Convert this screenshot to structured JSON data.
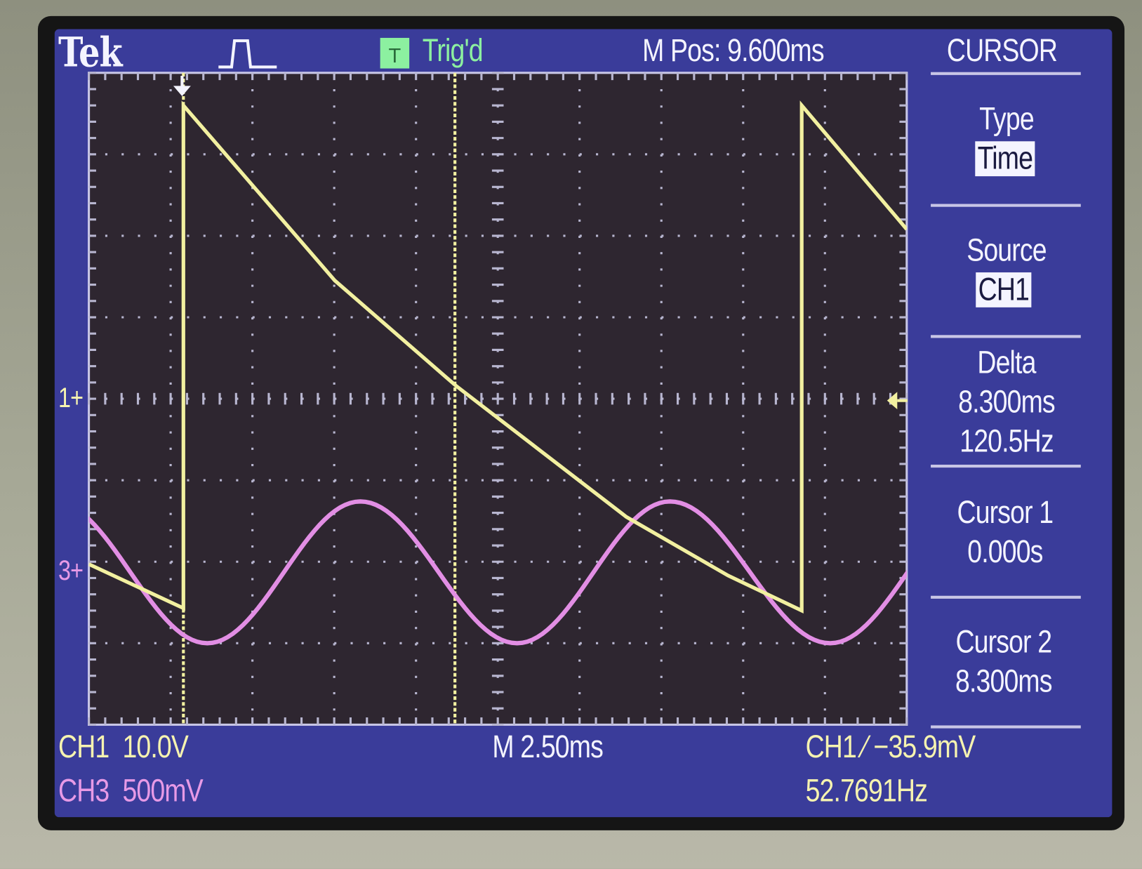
{
  "header": {
    "brand": "Tek",
    "acquire_icon": "pulse-waveform-icon",
    "trigger_status_icon": "trigger-T-icon",
    "trigger_status": "Trig'd",
    "main_position": "M Pos: 9.600ms",
    "menu_title": "CURSOR"
  },
  "side_menu": {
    "type_label": "Type",
    "type_value": "Time",
    "source_label": "Source",
    "source_value": "CH1",
    "delta_label": "Delta",
    "delta_time": "8.300ms",
    "delta_freq": "120.5Hz",
    "cursor1_label": "Cursor 1",
    "cursor1_value": "0.000s",
    "cursor2_label": "Cursor 2",
    "cursor2_value": "8.300ms"
  },
  "footer": {
    "ch1_scale": "CH1  10.0V",
    "ch3_scale": "CH3  500mV",
    "timebase": "M 2.50ms",
    "trigger": "CH1 ∕ −35.9mV",
    "frequency": "52.7691Hz"
  },
  "markers": {
    "ch1": "1+",
    "ch3": "3+"
  },
  "colors": {
    "screen": "#3a3c9a",
    "plot": "#2e2630",
    "ch1": "#f2f0a0",
    "ch3": "#e28ee4",
    "cursor": "#f2f0a0",
    "trigd": "#8cf0a0"
  },
  "chart_data": {
    "type": "line",
    "grid": true,
    "x_unit": "ms",
    "xlim": [
      -2.89,
      22.11
    ],
    "x_divisions": 10,
    "y_divisions": 8,
    "cursors_ms": [
      0,
      8.3
    ],
    "series": [
      {
        "name": "CH1",
        "volts_per_div": 10,
        "ylim": [
          -40,
          40
        ],
        "points": [
          [
            -2.89,
            -20.3
          ],
          [
            0,
            -25.7
          ],
          [
            0,
            36
          ],
          [
            4.63,
            14.5
          ],
          [
            8.33,
            1.6
          ],
          [
            13.54,
            -14.5
          ],
          [
            16.65,
            -21.7
          ],
          [
            18.9,
            -26
          ],
          [
            18.9,
            36
          ],
          [
            22.11,
            20.8
          ]
        ]
      },
      {
        "name": "CH3",
        "volts_per_div": 0.5,
        "ylim": [
          -0.94,
          3.06
        ],
        "extrema": [
          [
            -3.97,
            0.43
          ],
          [
            0.73,
            -0.44
          ],
          [
            5.41,
            0.43
          ],
          [
            10.2,
            -0.44
          ],
          [
            14.87,
            0.43
          ],
          [
            19.77,
            -0.44
          ],
          [
            24.5,
            0.43
          ]
        ]
      }
    ]
  }
}
